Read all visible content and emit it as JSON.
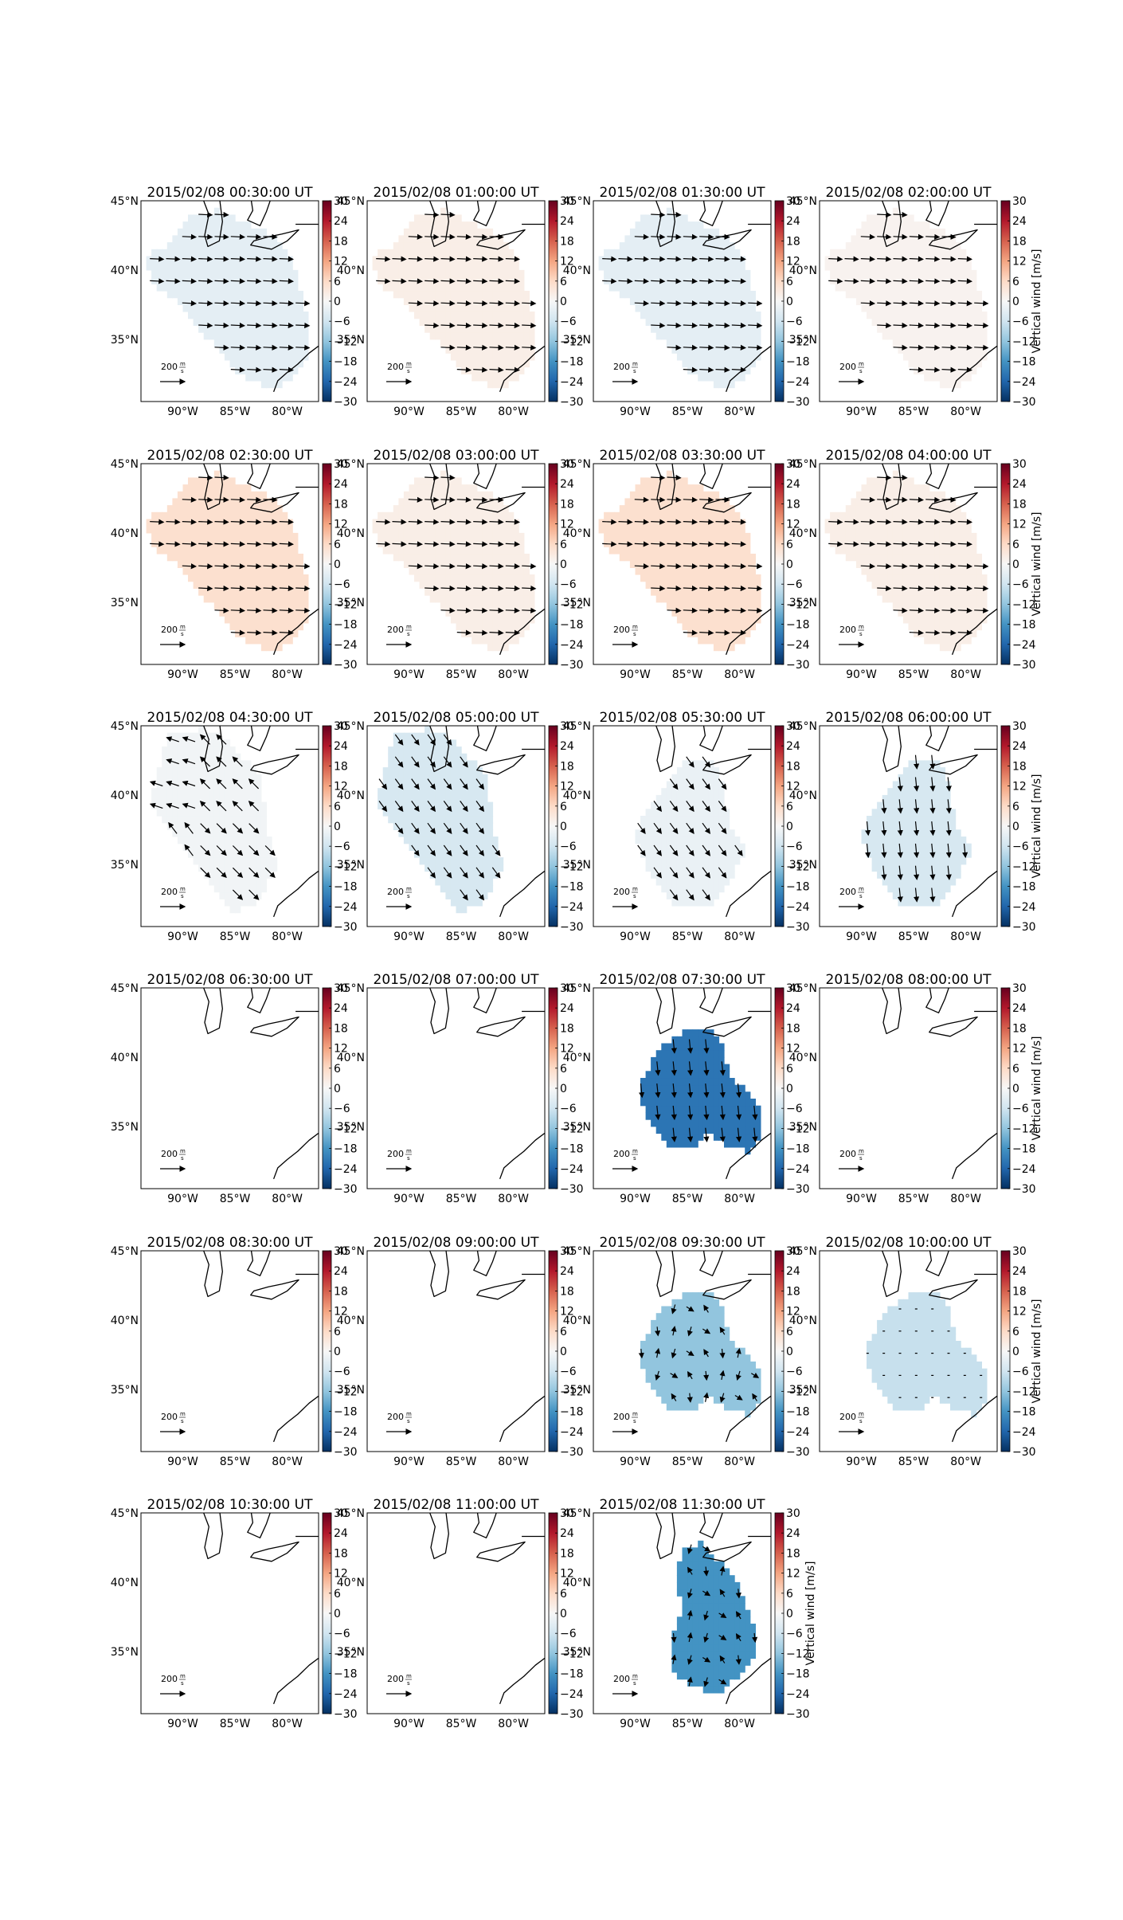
{
  "chart_data": {
    "type": "heatmap",
    "layout": {
      "rows": 6,
      "columns": 4
    },
    "colorbar": {
      "label": "Vertical wind [m/s]",
      "ticks": [
        30,
        24,
        18,
        12,
        6,
        0,
        -6,
        -12,
        -18,
        -24,
        -30
      ],
      "tick_labels": [
        "30",
        "24",
        "18",
        "12",
        "6",
        "0",
        "−6",
        "−12",
        "−18",
        "−24",
        "−30"
      ],
      "range": [
        -30,
        30
      ],
      "colormap": "RdBu_r"
    },
    "lat_ticks": [
      "45°N",
      "40°N",
      "35°N"
    ],
    "lon_ticks": [
      "90°W",
      "85°W",
      "80°W"
    ],
    "vector_key": {
      "value": "200",
      "unit_num": "m",
      "unit_den": "s"
    },
    "panels": [
      {
        "title": "2015/02/08 00:30:00 UT",
        "shape": "A",
        "vertical_wind": -3,
        "arrows": "east"
      },
      {
        "title": "2015/02/08 01:00:00 UT",
        "shape": "A",
        "vertical_wind": 2,
        "arrows": "east"
      },
      {
        "title": "2015/02/08 01:30:00 UT",
        "shape": "A",
        "vertical_wind": -3,
        "arrows": "east"
      },
      {
        "title": "2015/02/08 02:00:00 UT",
        "shape": "A",
        "vertical_wind": 1,
        "arrows": "east"
      },
      {
        "title": "2015/02/08 02:30:00 UT",
        "shape": "A",
        "vertical_wind": 5,
        "arrows": "east"
      },
      {
        "title": "2015/02/08 03:00:00 UT",
        "shape": "A",
        "vertical_wind": 2,
        "arrows": "east"
      },
      {
        "title": "2015/02/08 03:30:00 UT",
        "shape": "A",
        "vertical_wind": 5,
        "arrows": "east"
      },
      {
        "title": "2015/02/08 04:00:00 UT",
        "shape": "A",
        "vertical_wind": 2,
        "arrows": "east"
      },
      {
        "title": "2015/02/08 04:30:00 UT",
        "shape": "B",
        "vertical_wind": -1,
        "arrows": "diverge"
      },
      {
        "title": "2015/02/08 05:00:00 UT",
        "shape": "B",
        "vertical_wind": -5,
        "arrows": "southeast"
      },
      {
        "title": "2015/02/08 05:30:00 UT",
        "shape": "C",
        "vertical_wind": -2,
        "arrows": "southeast"
      },
      {
        "title": "2015/02/08 06:00:00 UT",
        "shape": "C",
        "vertical_wind": -5,
        "arrows": "south"
      },
      {
        "title": "2015/02/08 06:30:00 UT",
        "shape": "none",
        "vertical_wind": null,
        "arrows": "none"
      },
      {
        "title": "2015/02/08 07:00:00 UT",
        "shape": "none",
        "vertical_wind": null,
        "arrows": "none"
      },
      {
        "title": "2015/02/08 07:30:00 UT",
        "shape": "D",
        "vertical_wind": -22,
        "arrows": "south"
      },
      {
        "title": "2015/02/08 08:00:00 UT",
        "shape": "none",
        "vertical_wind": null,
        "arrows": "none"
      },
      {
        "title": "2015/02/08 08:30:00 UT",
        "shape": "none",
        "vertical_wind": null,
        "arrows": "none"
      },
      {
        "title": "2015/02/08 09:00:00 UT",
        "shape": "none",
        "vertical_wind": null,
        "arrows": "none"
      },
      {
        "title": "2015/02/08 09:30:00 UT",
        "shape": "D",
        "vertical_wind": -12,
        "arrows": "mixed"
      },
      {
        "title": "2015/02/08 10:00:00 UT",
        "shape": "D",
        "vertical_wind": -7,
        "arrows": "dots"
      },
      {
        "title": "2015/02/08 10:30:00 UT",
        "shape": "none",
        "vertical_wind": null,
        "arrows": "none"
      },
      {
        "title": "2015/02/08 11:00:00 UT",
        "shape": "none",
        "vertical_wind": null,
        "arrows": "none"
      },
      {
        "title": "2015/02/08 11:30:00 UT",
        "shape": "E",
        "vertical_wind": -18,
        "arrows": "mixed"
      }
    ]
  }
}
